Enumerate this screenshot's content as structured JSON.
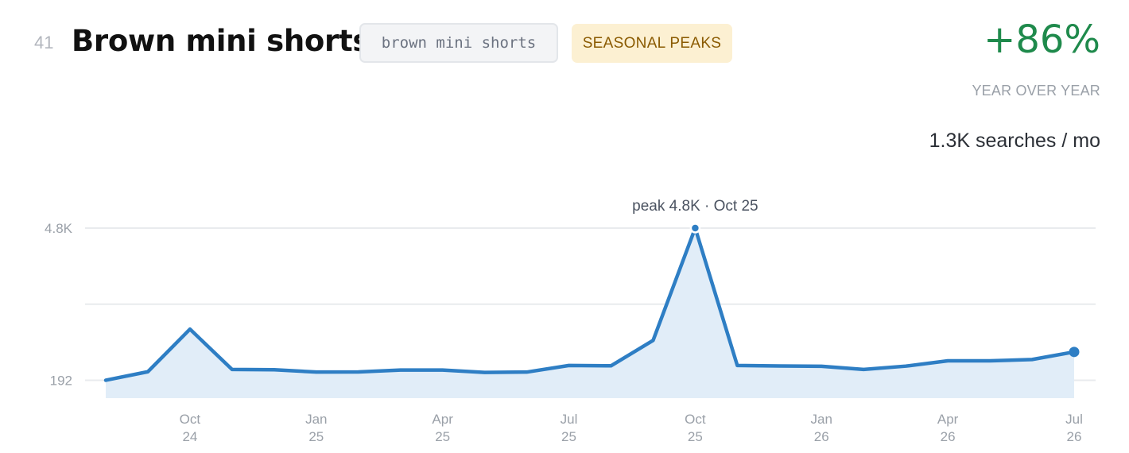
{
  "header": {
    "rank": "41",
    "title": "Brown mini shorts",
    "keyword": "brown mini shorts",
    "trend_badge": "SEASONAL PEAKS"
  },
  "stats": {
    "growth": "+86%",
    "growth_label": "YEAR OVER YEAR",
    "volume": "1.3K searches / mo"
  },
  "colors": {
    "line": "#2e7ec4",
    "area": "#e1edf8",
    "growth": "#1f8a4c",
    "badge_bg": "#fcf0d2",
    "badge_text": "#8a5a00"
  },
  "chart_data": {
    "type": "area",
    "x": [
      "2024-08",
      "2024-09",
      "2024-10",
      "2024-11",
      "2024-12",
      "2025-01",
      "2025-02",
      "2025-03",
      "2025-04",
      "2025-05",
      "2025-06",
      "2025-07",
      "2025-08",
      "2025-09",
      "2025-10",
      "2025-11",
      "2025-12",
      "2026-01",
      "2026-02",
      "2026-03",
      "2026-04",
      "2026-05",
      "2026-06",
      "2026-07"
    ],
    "values": [
      192,
      450,
      1740,
      520,
      510,
      440,
      445,
      500,
      500,
      430,
      440,
      640,
      630,
      1400,
      4800,
      640,
      625,
      615,
      520,
      620,
      780,
      780,
      820,
      1050
    ],
    "y_ticks": [
      "4.8K",
      "192"
    ],
    "y_tick_values": [
      4800,
      192
    ],
    "ylim": [
      -350,
      4800
    ],
    "grid": true,
    "x_tick_labels": [
      {
        "month": "Oct",
        "year": "24"
      },
      {
        "month": "Jan",
        "year": "25"
      },
      {
        "month": "Apr",
        "year": "25"
      },
      {
        "month": "Jul",
        "year": "25"
      },
      {
        "month": "Oct",
        "year": "25"
      },
      {
        "month": "Jan",
        "year": "26"
      },
      {
        "month": "Apr",
        "year": "26"
      },
      {
        "month": "Jul",
        "year": "26"
      }
    ],
    "x_tick_indices": [
      2,
      5,
      8,
      11,
      14,
      17,
      20,
      23
    ],
    "peak_annotation": "peak 4.8K · Oct 25",
    "peak_index": 14
  }
}
